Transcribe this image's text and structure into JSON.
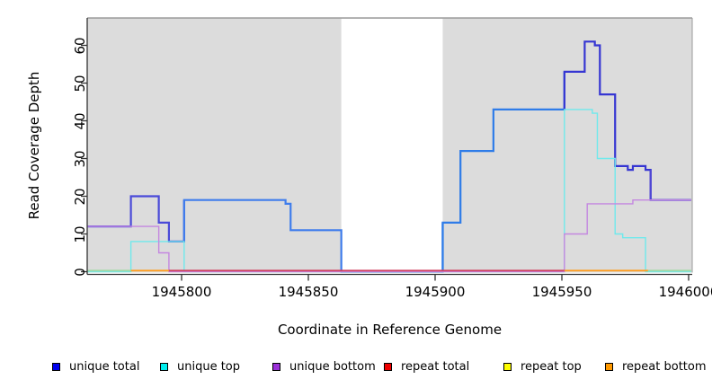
{
  "figure": {
    "kind": "R step plot of read coverage depth across a reference genome window"
  },
  "chart_data": {
    "type": "line",
    "step_style": "step-after",
    "title": "",
    "xlabel": "Coordinate in Reference Genome",
    "ylabel": "Read Coverage Depth",
    "x_ticks": [
      1945800,
      1945850,
      1945900,
      1945950,
      1946000
    ],
    "x_tick_labels": [
      "1945800",
      "1945850",
      "1945900",
      "1945950",
      "1946000"
    ],
    "y_ticks": [
      0,
      10,
      20,
      30,
      40,
      50,
      60
    ],
    "y_tick_labels": [
      "0",
      "10",
      "20",
      "30",
      "40",
      "50",
      "60"
    ],
    "xlim": [
      1945763,
      1946001
    ],
    "ylim": [
      0,
      67
    ],
    "grid": false,
    "plot_background": "#dcdcdc",
    "masked_region": {
      "from": 1945863,
      "to": 1945903,
      "color": "#ffffff",
      "note": "white unmasked gap, lines at 0 still drawn through it"
    },
    "series": [
      {
        "name": "unique total",
        "color": "#3a3ad2",
        "line_width": 2.2,
        "steps": [
          [
            1945763,
            12
          ],
          [
            1945780,
            20
          ],
          [
            1945791,
            13
          ],
          [
            1945795,
            8
          ],
          [
            1945801,
            19
          ],
          [
            1945841,
            18
          ],
          [
            1945843,
            11
          ],
          [
            1945863,
            0
          ],
          [
            1945903,
            13
          ],
          [
            1945910,
            32
          ],
          [
            1945923,
            43
          ],
          [
            1945951,
            53
          ],
          [
            1945959,
            61
          ],
          [
            1945963,
            60
          ],
          [
            1945965,
            47
          ],
          [
            1945971,
            28
          ],
          [
            1945976,
            27
          ],
          [
            1945978,
            28
          ],
          [
            1945983,
            27
          ],
          [
            1945985,
            19
          ],
          [
            1946001,
            19
          ]
        ],
        "color_spans": [
          {
            "from": 1945763,
            "to": 1945801,
            "color": "#4a4ad8"
          },
          {
            "from": 1945801,
            "to": 1945903,
            "color": "#3f7dec"
          },
          {
            "from": 1945903,
            "to": 1945951,
            "color": "#2f7ce8"
          },
          {
            "from": 1945951,
            "to": 1945985,
            "color": "#3636d2"
          },
          {
            "from": 1945985,
            "to": 1946001,
            "color": "#4f46d4"
          }
        ]
      },
      {
        "name": "unique top",
        "color": "#6fe9ec",
        "line_width": 1.4,
        "steps": [
          [
            1945763,
            0
          ],
          [
            1945780,
            8
          ],
          [
            1945801,
            0
          ],
          [
            1945951,
            43
          ],
          [
            1945962,
            42
          ],
          [
            1945964,
            30
          ],
          [
            1945971,
            10
          ],
          [
            1945974,
            9
          ],
          [
            1945983,
            0
          ],
          [
            1946001,
            0
          ]
        ]
      },
      {
        "name": "unique bottom",
        "color": "#c487e0",
        "line_width": 1.4,
        "steps": [
          [
            1945763,
            12
          ],
          [
            1945791,
            5
          ],
          [
            1945795,
            0
          ],
          [
            1945951,
            10
          ],
          [
            1945960,
            18
          ],
          [
            1945978,
            19
          ],
          [
            1946001,
            19
          ]
        ]
      },
      {
        "name": "repeat total",
        "color": "#d04060",
        "line_width": 1.4,
        "steps": [
          [
            1945763,
            0
          ],
          [
            1946001,
            0
          ]
        ]
      },
      {
        "name": "repeat top",
        "color": "#f0f000",
        "line_width": 1.4,
        "steps": [
          [
            1945763,
            0
          ],
          [
            1946001,
            0
          ]
        ]
      },
      {
        "name": "repeat bottom",
        "color": "#ff9d1e",
        "line_width": 1.4,
        "steps": [
          [
            1945763,
            0
          ],
          [
            1946001,
            0
          ]
        ]
      }
    ],
    "baseline_appearance": [
      {
        "from": 1945763,
        "to": 1945780,
        "color": "#9fd8a4"
      },
      {
        "from": 1945780,
        "to": 1945795,
        "color": "#ff9d1e"
      },
      {
        "from": 1945795,
        "to": 1945951,
        "color": "#d04060"
      },
      {
        "from": 1945951,
        "to": 1945984,
        "color": "#ff9d1e"
      },
      {
        "from": 1945984,
        "to": 1946001,
        "color": "#9fd8a4"
      }
    ],
    "legend_position": "bottom",
    "legend": [
      {
        "label": "unique total",
        "color": "#0000ee"
      },
      {
        "label": "unique top",
        "color": "#00eeee"
      },
      {
        "label": "unique bottom",
        "color": "#9b30d9"
      },
      {
        "label": "repeat total",
        "color": "#ee0000"
      },
      {
        "label": "repeat top",
        "color": "#ffff00"
      },
      {
        "label": "repeat bottom",
        "color": "#ff9900"
      }
    ]
  }
}
